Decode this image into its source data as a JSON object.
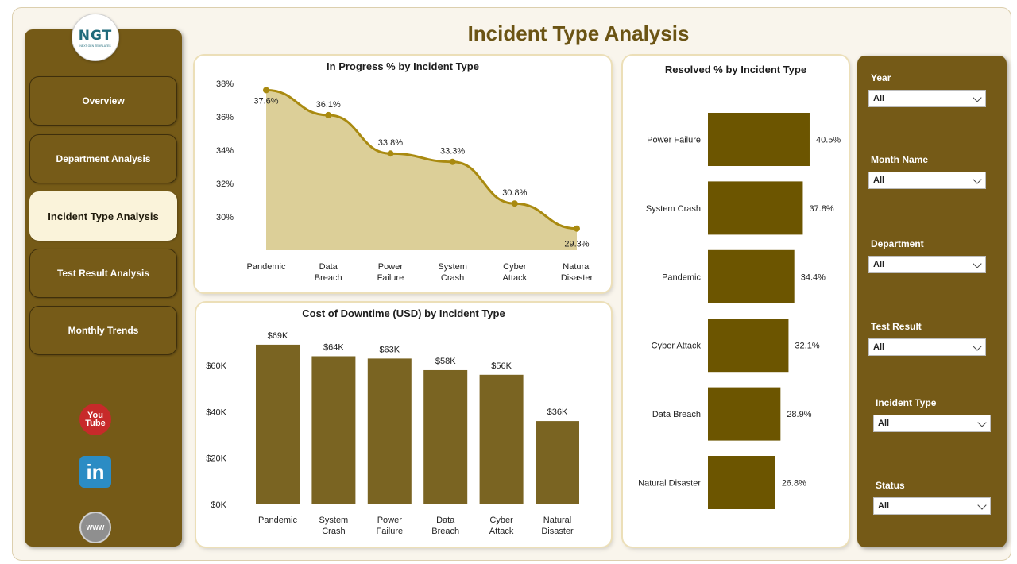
{
  "page_title": "Incident Type Analysis",
  "logo": {
    "mark": "NGT",
    "sub": "NEXT GEN TEMPLATES"
  },
  "nav": [
    {
      "label": "Overview",
      "active": false
    },
    {
      "label": "Department Analysis",
      "active": false
    },
    {
      "label": "Incident Type Analysis",
      "active": true
    },
    {
      "label": "Test Result Analysis",
      "active": false
    },
    {
      "label": "Monthly Trends",
      "active": false
    }
  ],
  "social": [
    {
      "icon": "youtube-icon",
      "text": "You\nTube"
    },
    {
      "icon": "linkedin-icon",
      "text": "in"
    },
    {
      "icon": "website-icon",
      "text": "WWW"
    }
  ],
  "filters": [
    {
      "label": "Year",
      "value": "All"
    },
    {
      "label": "Month Name",
      "value": "All"
    },
    {
      "label": "Department",
      "value": "All"
    },
    {
      "label": "Test Result",
      "value": "All"
    },
    {
      "label": "Incident Type",
      "value": "All"
    },
    {
      "label": "Status",
      "value": "All"
    }
  ],
  "colors": {
    "brand": "#755a17",
    "bar": "#7a6422",
    "hbar": "#6c5500",
    "line": "#a98a10",
    "area": "#dccf98",
    "title": "#6b5414"
  },
  "chart_data": [
    {
      "type": "area",
      "title": "In Progress % by Incident Type",
      "categories": [
        "Pandemic",
        "Data Breach",
        "Power Failure",
        "System Crash",
        "Cyber Attack",
        "Natural Disaster"
      ],
      "values": [
        37.6,
        36.1,
        33.8,
        33.3,
        30.8,
        29.3
      ],
      "value_labels": [
        "37.6%",
        "36.1%",
        "33.8%",
        "33.3%",
        "30.8%",
        "29.3%"
      ],
      "yticks": [
        "30%",
        "32%",
        "34%",
        "36%",
        "38%"
      ],
      "ylim": [
        28,
        38
      ]
    },
    {
      "type": "bar",
      "title": "Cost of Downtime (USD) by Incident Type",
      "categories": [
        "Pandemic",
        "System Crash",
        "Power Failure",
        "Data Breach",
        "Cyber Attack",
        "Natural Disaster"
      ],
      "values": [
        69,
        64,
        63,
        58,
        56,
        36
      ],
      "value_labels": [
        "$69K",
        "$64K",
        "$63K",
        "$58K",
        "$56K",
        "$36K"
      ],
      "yticks": [
        "$0K",
        "$20K",
        "$40K",
        "$60K"
      ],
      "ylim": [
        0,
        70
      ]
    },
    {
      "type": "bar",
      "orientation": "horizontal",
      "title": "Resolved % by Incident Type",
      "categories": [
        "Power Failure",
        "System Crash",
        "Pandemic",
        "Cyber Attack",
        "Data Breach",
        "Natural Disaster"
      ],
      "values": [
        40.5,
        37.8,
        34.4,
        32.1,
        28.9,
        26.8
      ],
      "value_labels": [
        "40.5%",
        "37.8%",
        "34.4%",
        "32.1%",
        "28.9%",
        "26.8%"
      ]
    }
  ]
}
